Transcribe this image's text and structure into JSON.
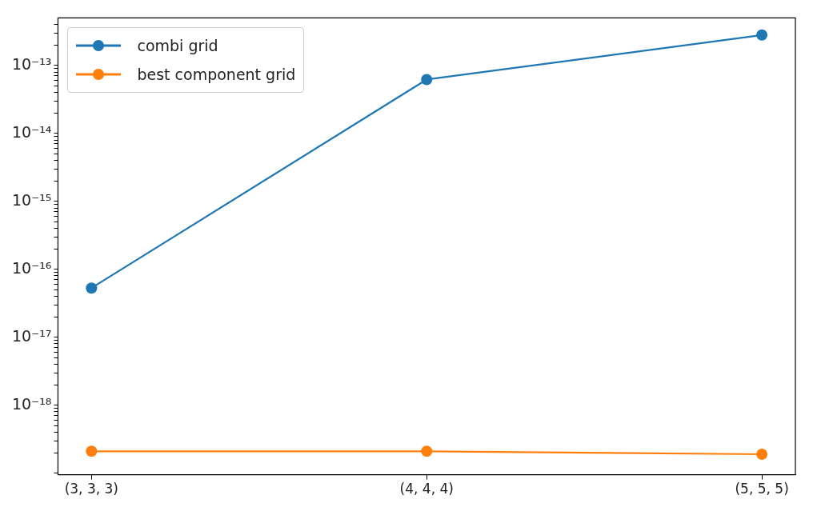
{
  "chart_data": {
    "type": "line",
    "categories": [
      "(3, 3, 3)",
      "(4, 4, 4)",
      "(5, 5, 5)"
    ],
    "series": [
      {
        "name": "combi grid",
        "color": "#1f77b4",
        "values": [
          5.3e-17,
          6.2e-14,
          2.8e-13
        ]
      },
      {
        "name": "best component grid",
        "color": "#ff7f0e",
        "values": [
          2.1e-19,
          2.1e-19,
          1.9e-19
        ]
      }
    ],
    "log": "y",
    "ylim": [
      9.5e-20,
      5e-13
    ],
    "yticks": [
      {
        "value": 1e-19,
        "label": null
      },
      {
        "value": 2e-19,
        "label": null
      },
      {
        "value": 3e-19,
        "label": null
      },
      {
        "value": 4e-19,
        "label": null
      },
      {
        "value": 5e-19,
        "label": null
      },
      {
        "value": 6e-19,
        "label": null
      },
      {
        "value": 7e-19,
        "label": null
      },
      {
        "value": 8e-19,
        "label": null
      },
      {
        "value": 9e-19,
        "label": null
      },
      {
        "value": 1e-18,
        "label": "10⁻¹⁸"
      },
      {
        "value": 2e-18,
        "label": null
      },
      {
        "value": 3e-18,
        "label": null
      },
      {
        "value": 4e-18,
        "label": null
      },
      {
        "value": 5e-18,
        "label": null
      },
      {
        "value": 6e-18,
        "label": null
      },
      {
        "value": 7e-18,
        "label": null
      },
      {
        "value": 8e-18,
        "label": null
      },
      {
        "value": 9e-18,
        "label": null
      },
      {
        "value": 1e-17,
        "label": "10⁻¹⁷"
      },
      {
        "value": 2e-17,
        "label": null
      },
      {
        "value": 3e-17,
        "label": null
      },
      {
        "value": 4e-17,
        "label": null
      },
      {
        "value": 5e-17,
        "label": null
      },
      {
        "value": 6e-17,
        "label": null
      },
      {
        "value": 7e-17,
        "label": null
      },
      {
        "value": 8e-17,
        "label": null
      },
      {
        "value": 9e-17,
        "label": null
      },
      {
        "value": 1e-16,
        "label": "10⁻¹⁶"
      },
      {
        "value": 2e-16,
        "label": null
      },
      {
        "value": 3e-16,
        "label": null
      },
      {
        "value": 4e-16,
        "label": null
      },
      {
        "value": 5e-16,
        "label": null
      },
      {
        "value": 6e-16,
        "label": null
      },
      {
        "value": 7e-16,
        "label": null
      },
      {
        "value": 8e-16,
        "label": null
      },
      {
        "value": 9e-16,
        "label": null
      },
      {
        "value": 1e-15,
        "label": "10⁻¹⁵"
      },
      {
        "value": 2e-15,
        "label": null
      },
      {
        "value": 3e-15,
        "label": null
      },
      {
        "value": 4e-15,
        "label": null
      },
      {
        "value": 5e-15,
        "label": null
      },
      {
        "value": 6e-15,
        "label": null
      },
      {
        "value": 7e-15,
        "label": null
      },
      {
        "value": 8e-15,
        "label": null
      },
      {
        "value": 9e-15,
        "label": null
      },
      {
        "value": 1e-14,
        "label": "10⁻¹⁴"
      },
      {
        "value": 2e-14,
        "label": null
      },
      {
        "value": 3e-14,
        "label": null
      },
      {
        "value": 4e-14,
        "label": null
      },
      {
        "value": 5e-14,
        "label": null
      },
      {
        "value": 6e-14,
        "label": null
      },
      {
        "value": 7e-14,
        "label": null
      },
      {
        "value": 8e-14,
        "label": null
      },
      {
        "value": 9e-14,
        "label": null
      },
      {
        "value": 1e-13,
        "label": "10⁻¹³"
      },
      {
        "value": 2e-13,
        "label": null
      },
      {
        "value": 3e-13,
        "label": null
      },
      {
        "value": 4e-13,
        "label": null
      }
    ],
    "grid": false,
    "legend": "top left",
    "marker": "circle",
    "line_style": "solid"
  }
}
